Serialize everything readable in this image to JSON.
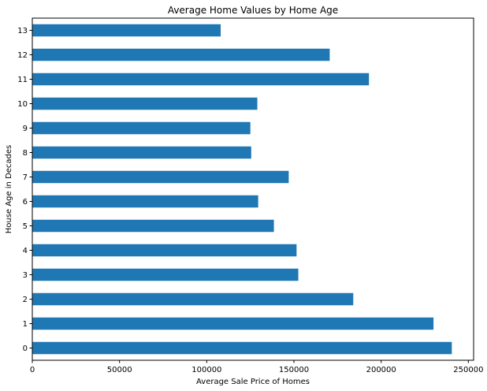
{
  "chart_data": {
    "type": "bar",
    "orientation": "horizontal",
    "title": "Average Home Values by Home Age",
    "xlabel": "Average Sale Price of Homes",
    "ylabel": "House Age in Decades",
    "categories": [
      "0",
      "1",
      "2",
      "3",
      "4",
      "5",
      "6",
      "7",
      "8",
      "9",
      "10",
      "11",
      "12",
      "13"
    ],
    "values": [
      240500,
      230000,
      184000,
      152500,
      151500,
      138500,
      129500,
      147000,
      125500,
      125000,
      129000,
      193000,
      170500,
      108000
    ],
    "xlim": [
      0,
      253000
    ],
    "x_ticks": [
      0,
      50000,
      100000,
      150000,
      200000,
      250000
    ],
    "x_tick_labels": [
      "0",
      "50000",
      "100000",
      "150000",
      "200000",
      "250000"
    ],
    "bar_color": "#1f77b4",
    "grid": false,
    "legend": "none"
  }
}
